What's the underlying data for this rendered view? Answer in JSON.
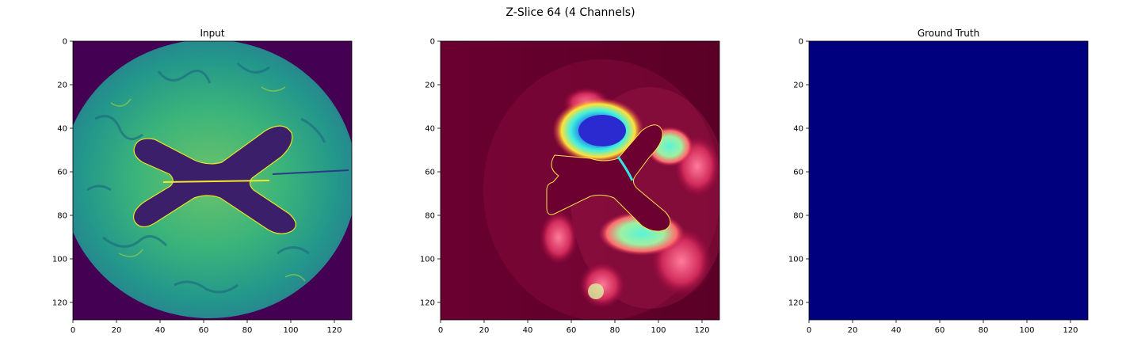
{
  "figure": {
    "suptitle": "Z-Slice 64 (4 Channels)"
  },
  "panels": [
    {
      "title": "Input",
      "colormap": "viridis"
    },
    {
      "title": "",
      "colormap": "jet-overlay"
    },
    {
      "title": "Ground Truth",
      "colormap": "jet",
      "fill": "#00007f"
    }
  ],
  "axes": {
    "xticks": [
      "0",
      "20",
      "40",
      "60",
      "80",
      "100",
      "120"
    ],
    "yticks": [
      "0",
      "20",
      "40",
      "60",
      "80",
      "100",
      "120"
    ],
    "range": [
      0,
      128
    ]
  },
  "colors": {
    "viridis_background": "#440154",
    "tissue": "#2ba58e",
    "ventricle": "#3b1f6b",
    "overlay_background": "#5c0028",
    "jet_background": "#00007f"
  }
}
